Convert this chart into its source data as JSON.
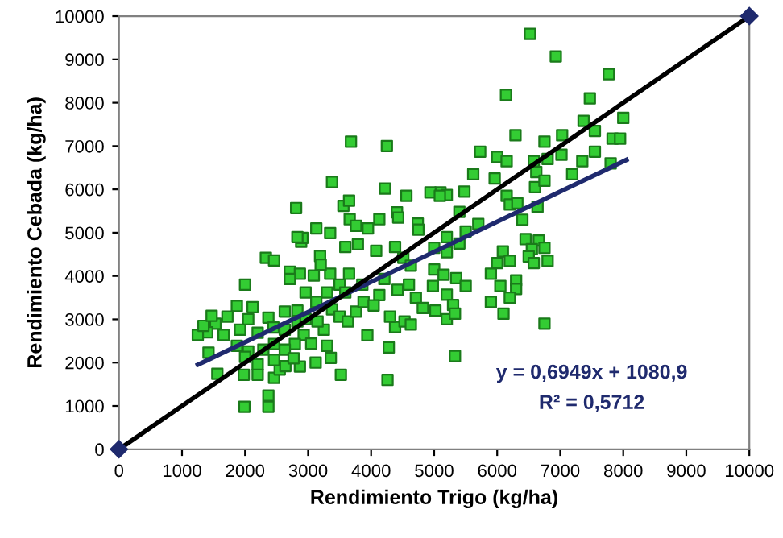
{
  "chart_data": {
    "type": "scatter",
    "xlabel": "Rendimiento Trigo (kg/ha)",
    "ylabel": "Rendimiento Cebada (kg/ha)",
    "xlim": [
      0,
      10000
    ],
    "ylim": [
      0,
      10000
    ],
    "xticks": [
      0,
      1000,
      2000,
      3000,
      4000,
      5000,
      6000,
      7000,
      8000,
      9000,
      10000
    ],
    "yticks": [
      0,
      1000,
      2000,
      3000,
      4000,
      5000,
      6000,
      7000,
      8000,
      9000,
      10000
    ],
    "grid": false,
    "legend": false,
    "annotations": [
      "y = 0,6949x + 1080,9",
      "R² = 0,5712"
    ],
    "series": [
      {
        "color": "#33cc33",
        "marker": "square",
        "x": [
          3680,
          4250,
          3380,
          4220,
          2810,
          6520,
          6930,
          7770,
          6140,
          7470,
          8000,
          7370,
          6290,
          6750,
          7030,
          7550,
          7830,
          7950,
          5730,
          6000,
          6150,
          6580,
          6800,
          7020,
          7350,
          7550,
          7800,
          5620,
          5960,
          6620,
          7190,
          6150,
          6600,
          6750,
          6200,
          6320,
          6400,
          6640,
          5480,
          5100,
          5200,
          5400,
          5700,
          5500,
          5200,
          5400,
          5000,
          5200,
          6450,
          6660,
          6550,
          6750,
          6500,
          6580,
          6800,
          6000,
          6090,
          6200,
          5900,
          6300,
          6050,
          6300,
          6200,
          5900,
          6100,
          6750,
          5000,
          5150,
          5350,
          5500,
          4980,
          5200,
          5300,
          5020,
          5200,
          5330,
          5330,
          1990,
          2370,
          2370,
          1980,
          2200,
          2460,
          2550,
          2870,
          3120,
          3520,
          4260,
          4280,
          3940,
          4380,
          2000,
          2330,
          2460,
          2890,
          2910,
          2830,
          3130,
          3350,
          3190,
          3560,
          3650,
          3660,
          3760,
          3590,
          3790,
          3950,
          4080,
          4130,
          4410,
          4430,
          4560,
          4740,
          4750,
          4940,
          5090,
          4380,
          4510,
          4630,
          2710,
          2870,
          3090,
          3350,
          2710,
          2960,
          3130,
          3300,
          3500,
          3590,
          3380,
          3500,
          3630,
          3760,
          3880,
          4130,
          4210,
          4420,
          4600,
          4710,
          4820,
          4530,
          4630,
          4300,
          4040,
          3860,
          3650,
          3200,
          2630,
          2370,
          2120,
          1870,
          1720,
          1530,
          1400,
          1660,
          1920,
          2050,
          2200,
          2450,
          2630,
          2830,
          2930,
          2790,
          2630,
          2460,
          2290,
          2050,
          1870,
          2460,
          2640,
          2770,
          2200,
          2000,
          3050,
          3250,
          3300,
          3360,
          3150,
          2960,
          2830,
          1250,
          1340,
          1420,
          1560,
          1470
        ],
        "values": [
          7100,
          7000,
          6170,
          6020,
          5570,
          9590,
          9070,
          8660,
          8180,
          8100,
          7650,
          7580,
          7250,
          7100,
          7250,
          7350,
          7170,
          7170,
          6870,
          6750,
          6650,
          6650,
          6700,
          6800,
          6650,
          6870,
          6600,
          6350,
          6250,
          6400,
          6350,
          5850,
          6050,
          6200,
          5650,
          5680,
          5300,
          5600,
          5950,
          5930,
          5870,
          5480,
          5200,
          5030,
          4900,
          4750,
          4650,
          4550,
          4850,
          4820,
          4620,
          4650,
          4450,
          4300,
          4350,
          4300,
          4570,
          4350,
          4050,
          3900,
          3770,
          3700,
          3500,
          3400,
          3130,
          2900,
          4150,
          4030,
          3950,
          3770,
          3770,
          3570,
          3330,
          3200,
          3000,
          3130,
          2150,
          980,
          980,
          1240,
          1720,
          1720,
          1650,
          1840,
          1910,
          2000,
          1720,
          1600,
          2350,
          2630,
          2820,
          3800,
          4420,
          4360,
          4790,
          4880,
          4900,
          5100,
          4990,
          4460,
          5620,
          5740,
          5310,
          5160,
          4670,
          4730,
          5100,
          4580,
          5310,
          5470,
          5350,
          5850,
          5210,
          5070,
          5930,
          5850,
          4670,
          4420,
          4240,
          4100,
          4050,
          4010,
          4050,
          3930,
          3620,
          3400,
          3620,
          3800,
          3620,
          3230,
          3060,
          2950,
          3180,
          3400,
          3560,
          3930,
          3680,
          3800,
          3500,
          3260,
          2950,
          2880,
          3060,
          3320,
          3800,
          4050,
          4260,
          3180,
          3040,
          3280,
          3310,
          3060,
          2900,
          2700,
          2640,
          2760,
          3000,
          2690,
          2810,
          2760,
          2950,
          2640,
          2430,
          2300,
          2430,
          2300,
          2260,
          2390,
          2060,
          1920,
          2100,
          1960,
          2130,
          2440,
          2760,
          2390,
          2110,
          2950,
          3000,
          3200,
          2640,
          2850,
          2230,
          1740,
          3080
        ]
      },
      {
        "type": "line",
        "color": "#1f2a6e",
        "marker": "none",
        "line_style": "solid",
        "x": [
          1250,
          8050
        ],
        "values": [
          1950,
          6680
        ]
      },
      {
        "type": "line",
        "color": "#000000",
        "marker": "diamond",
        "line_style": "solid",
        "x": [
          0,
          10000
        ],
        "values": [
          0,
          10000
        ]
      }
    ]
  }
}
